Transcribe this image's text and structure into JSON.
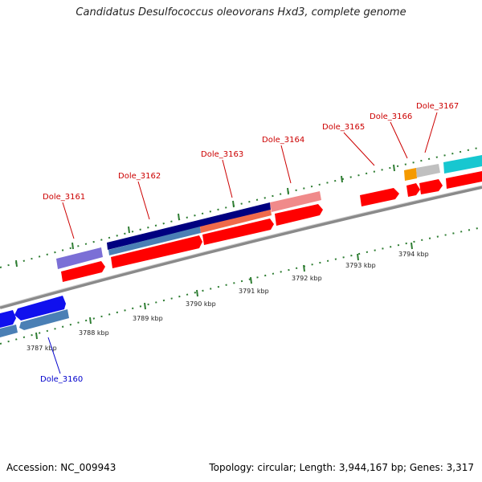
{
  "title": "Candidatus Desulfococcus oleovorans Hxd3, complete genome",
  "footer": {
    "accession": "Accession: NC_009943",
    "topology": "Topology: circular; Length: 3,944,167 bp; Genes: 3,317"
  },
  "scale_labels": [
    "3787 kbp",
    "3788 kbp",
    "3789 kbp",
    "3790 kbp",
    "3791 kbp",
    "3792 kbp",
    "3793 kbp",
    "3794 kbp"
  ],
  "gene_labels": [
    {
      "text": "Dole_3160",
      "color": "#0000cc"
    },
    {
      "text": "Dole_3161",
      "color": "#cc0000"
    },
    {
      "text": "Dole_3162",
      "color": "#cc0000"
    },
    {
      "text": "Dole_3163",
      "color": "#cc0000"
    },
    {
      "text": "Dole_3164",
      "color": "#cc0000"
    },
    {
      "text": "Dole_3165",
      "color": "#cc0000"
    },
    {
      "text": "Dole_3166",
      "color": "#cc0000"
    },
    {
      "text": "Dole_3167",
      "color": "#cc0000"
    }
  ],
  "colors": {
    "backbone": "#888888",
    "tick": "#2e7d32",
    "red": "#ff0000",
    "blue": "#1010ee",
    "steel": "#4a7fb5",
    "navy": "#000080",
    "lavender": "#7b6fd6",
    "salmon": "#f07d7d",
    "orange": "#f59a00",
    "grey": "#c0c0c0",
    "cyan": "#17c7d0"
  }
}
